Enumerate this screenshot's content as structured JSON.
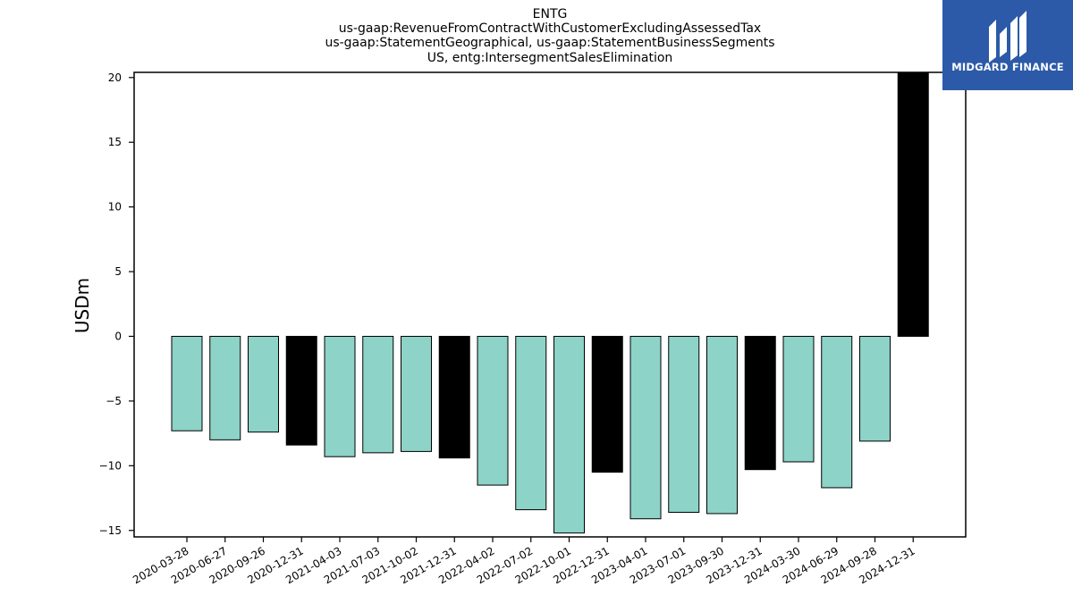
{
  "title_lines": [
    "ENTG",
    "us-gaap:RevenueFromContractWithCustomerExcludingAssessedTax",
    "us-gaap:StatementGeographical, us-gaap:StatementBusinessSegments",
    "US, entg:IntersegmentSalesElimination"
  ],
  "logo": {
    "text": "MIDGARD FINANCE",
    "background": "#2c5aa8",
    "icon": "midgard-logo-icon"
  },
  "chart_data": {
    "type": "bar",
    "title": "ENTG\nus-gaap:RevenueFromContractWithCustomerExcludingAssessedTax\nus-gaap:StatementGeographical, us-gaap:StatementBusinessSegments\nUS, entg:IntersegmentSalesElimination",
    "xlabel": "",
    "ylabel": "USDm",
    "ylim": [
      -15.5,
      20.4
    ],
    "yticks": [
      -15,
      -10,
      -5,
      0,
      5,
      10,
      15,
      20
    ],
    "ytick_labels": [
      "−15",
      "−10",
      "−5",
      "0",
      "5",
      "10",
      "15",
      "20"
    ],
    "grid": false,
    "categories": [
      "2020-03-28",
      "2020-06-27",
      "2020-09-26",
      "2020-12-31",
      "2021-04-03",
      "2021-07-03",
      "2021-10-02",
      "2021-12-31",
      "2022-04-02",
      "2022-07-02",
      "2022-10-01",
      "2022-12-31",
      "2023-04-01",
      "2023-07-01",
      "2023-09-30",
      "2023-12-31",
      "2024-03-30",
      "2024-06-29",
      "2024-09-28",
      "2024-12-31"
    ],
    "values": [
      -7.3,
      -8.0,
      -7.4,
      -8.4,
      -9.3,
      -9.0,
      -8.9,
      -9.4,
      -11.5,
      -13.4,
      -15.2,
      -10.5,
      -14.1,
      -13.6,
      -13.7,
      -10.3,
      -9.7,
      -11.7,
      -8.1,
      20.4
    ],
    "colors": [
      "#8dd3c7",
      "#8dd3c7",
      "#8dd3c7",
      "#000000",
      "#8dd3c7",
      "#8dd3c7",
      "#8dd3c7",
      "#000000",
      "#8dd3c7",
      "#8dd3c7",
      "#8dd3c7",
      "#000000",
      "#8dd3c7",
      "#8dd3c7",
      "#8dd3c7",
      "#000000",
      "#8dd3c7",
      "#8dd3c7",
      "#8dd3c7",
      "#000000"
    ]
  }
}
